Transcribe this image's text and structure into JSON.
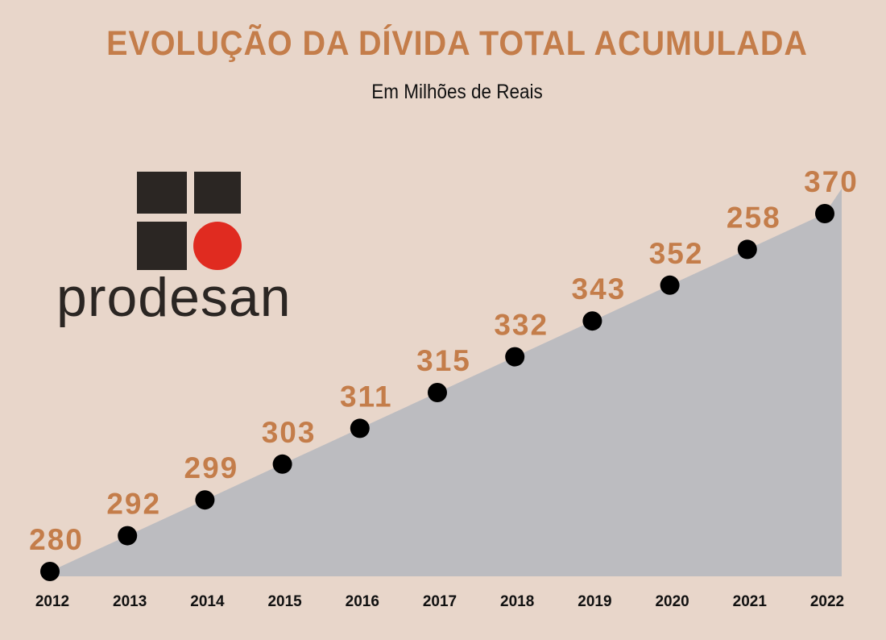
{
  "title": "EVOLUÇÃO DA DÍVIDA TOTAL ACUMULADA",
  "subtitle": "Em Milhões de Reais",
  "logo": {
    "text": "prodesan",
    "colors": {
      "squares": "#2b2623",
      "circle": "#e02b20"
    }
  },
  "colors": {
    "background": "#e8d6ca",
    "area": "#bcbcc0",
    "accent": "#c47d4a",
    "marker": "#000000"
  },
  "chart_data": {
    "type": "area",
    "x": [
      "2012",
      "2013",
      "2014",
      "2015",
      "2016",
      "2017",
      "2018",
      "2019",
      "2020",
      "2021",
      "2022"
    ],
    "values": [
      280,
      292,
      299,
      303,
      311,
      315,
      332,
      343,
      352,
      258,
      370
    ],
    "labels": [
      "280",
      "292",
      "299",
      "303",
      "311",
      "315",
      "332",
      "343",
      "352",
      "258",
      "370"
    ],
    "title": "EVOLUÇÃO DA DÍVIDA TOTAL ACUMULADA",
    "subtitle": "Em Milhões de Reais",
    "grid": false,
    "legend": "none"
  }
}
